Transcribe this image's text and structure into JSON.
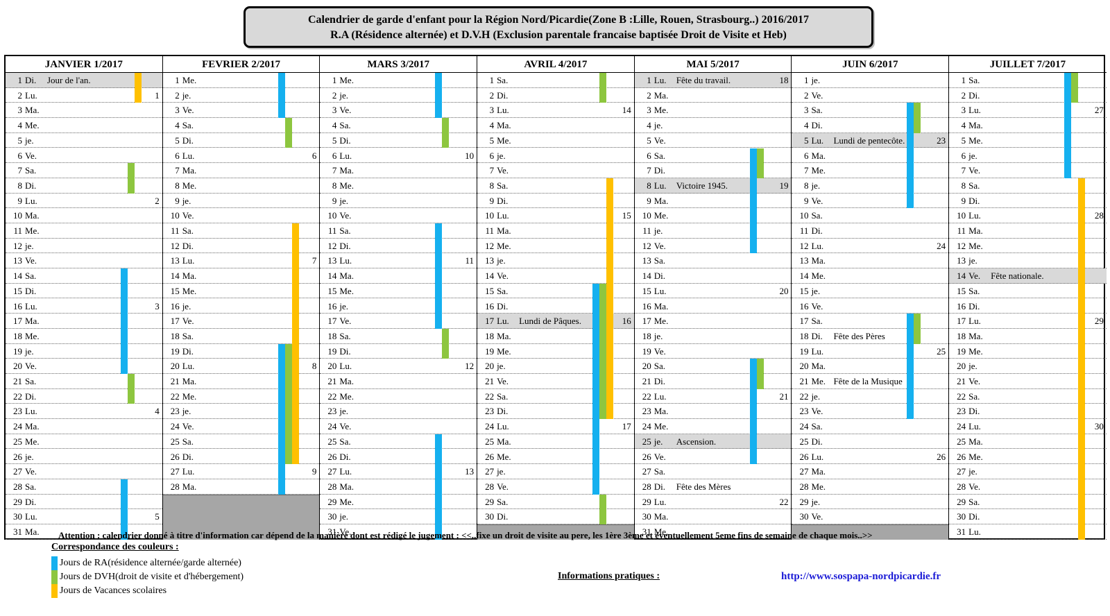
{
  "title": {
    "line1": "Calendrier de garde d'enfant pour la Région Nord/Picardie(Zone B :Lille, Rouen, Strasbourg..) 2016/2017",
    "line2": "R.A (Résidence alternée) et D.V.H (Exclusion parentale francaise baptisée Droit de Visite et Heb)"
  },
  "colors": {
    "ra": "#15b0ef",
    "dvh": "#8dc63f",
    "vacances": "#ffc000",
    "holiday": "#d9d9d9",
    "filler": "#a6a6a6"
  },
  "months": [
    {
      "name": "JANVIER 1/2017",
      "days": 31,
      "start_dow": 6,
      "holidays": [
        {
          "day": 1,
          "name": "Jour de l'an."
        }
      ],
      "weeks": [
        {
          "day": 2,
          "n": "1"
        },
        {
          "day": 9,
          "n": "2"
        },
        {
          "day": 16,
          "n": "3"
        },
        {
          "day": 23,
          "n": "4"
        },
        {
          "day": 30,
          "n": "5"
        }
      ],
      "ra": [
        [
          14,
          20
        ],
        [
          28,
          31
        ]
      ],
      "dvh": [
        [
          7,
          8
        ],
        [
          21,
          22
        ]
      ],
      "vac": [
        [
          1,
          2
        ]
      ]
    },
    {
      "name": "FEVRIER 2/2017",
      "days": 28,
      "start_dow": 2,
      "holidays": [],
      "weeks": [
        {
          "day": 6,
          "n": "6"
        },
        {
          "day": 13,
          "n": "7"
        },
        {
          "day": 20,
          "n": "8"
        },
        {
          "day": 27,
          "n": "9"
        }
      ],
      "ra": [
        [
          1,
          3
        ],
        [
          19,
          28
        ]
      ],
      "dvh": [
        [
          4,
          5
        ],
        [
          19,
          26
        ]
      ],
      "vac": [
        [
          11,
          26
        ]
      ]
    },
    {
      "name": "MARS 3/2017",
      "days": 31,
      "start_dow": 2,
      "holidays": [],
      "weeks": [
        {
          "day": 6,
          "n": "10"
        },
        {
          "day": 13,
          "n": "11"
        },
        {
          "day": 20,
          "n": "12"
        },
        {
          "day": 27,
          "n": "13"
        }
      ],
      "ra": [
        [
          1,
          3
        ],
        [
          11,
          17
        ],
        [
          25,
          31
        ]
      ],
      "dvh": [
        [
          4,
          5
        ],
        [
          18,
          19
        ]
      ],
      "vac": []
    },
    {
      "name": "AVRIL 4/2017",
      "days": 30,
      "start_dow": 5,
      "holidays": [
        {
          "day": 17,
          "name": "Lundi de Pâques."
        }
      ],
      "weeks": [
        {
          "day": 3,
          "n": "14"
        },
        {
          "day": 10,
          "n": "15"
        },
        {
          "day": 17,
          "n": "16"
        },
        {
          "day": 24,
          "n": "17"
        }
      ],
      "ra": [
        [
          15,
          28
        ]
      ],
      "dvh": [
        [
          1,
          2
        ],
        [
          15,
          23
        ],
        [
          29,
          30
        ]
      ],
      "vac": [
        [
          8,
          23
        ]
      ]
    },
    {
      "name": "MAI 5/2017",
      "days": 31,
      "start_dow": 0,
      "holidays": [
        {
          "day": 1,
          "name": "Fête du travail."
        },
        {
          "day": 8,
          "name": "Victoire 1945."
        },
        {
          "day": 25,
          "name": "Ascension."
        },
        {
          "day": 28,
          "name": "Fête des Mères",
          "plain": true
        }
      ],
      "weeks": [
        {
          "day": 1,
          "n": "18"
        },
        {
          "day": 8,
          "n": "19"
        },
        {
          "day": 15,
          "n": "20"
        },
        {
          "day": 22,
          "n": "21"
        },
        {
          "day": 29,
          "n": "22"
        }
      ],
      "ra": [
        [
          6,
          12
        ],
        [
          20,
          26
        ]
      ],
      "dvh": [
        [
          6,
          7
        ],
        [
          20,
          21
        ]
      ],
      "vac": []
    },
    {
      "name": "JUIN 6/2017",
      "days": 30,
      "start_dow": 3,
      "holidays": [
        {
          "day": 5,
          "name": "Lundi de pentecôte."
        },
        {
          "day": 18,
          "name": "Fête des Pères",
          "plain": true
        },
        {
          "day": 21,
          "name": "Fête de la Musique",
          "plain": true
        }
      ],
      "weeks": [
        {
          "day": 5,
          "n": "23"
        },
        {
          "day": 12,
          "n": "24"
        },
        {
          "day": 19,
          "n": "25"
        },
        {
          "day": 26,
          "n": "26"
        }
      ],
      "ra": [
        [
          3,
          9
        ],
        [
          17,
          23
        ]
      ],
      "dvh": [
        [
          3,
          4
        ],
        [
          17,
          18
        ]
      ],
      "vac": []
    },
    {
      "name": "JUILLET 7/2017",
      "days": 31,
      "start_dow": 5,
      "holidays": [
        {
          "day": 14,
          "name": "Fête nationale."
        }
      ],
      "weeks": [
        {
          "day": 3,
          "n": "27"
        },
        {
          "day": 10,
          "n": "28"
        },
        {
          "day": 17,
          "n": "29"
        },
        {
          "day": 24,
          "n": "30"
        }
      ],
      "ra": [
        [
          1,
          7
        ]
      ],
      "dvh": [
        [
          1,
          2
        ]
      ],
      "vac": [
        [
          8,
          31
        ]
      ]
    }
  ],
  "day_abbr": [
    "Lu.",
    "Ma.",
    "Me.",
    "je.",
    "Ve.",
    "Sa.",
    "Di."
  ],
  "attention": "Attention : calendrier donné à titre d'information car dépend de la manière dont est rédigé le jugement : <<..fixe un droit de visite au pere, les 1ère 3ème et éventuellement 5eme fins de semaine de chaque mois..>>",
  "legend": {
    "title": "Correspondance des couleurs :",
    "ra": "Jours de RA(résidence alternée/garde alternée)",
    "dvh": "Jours de DVH(droit de visite et d'hébergement)",
    "vac": "Jours de Vacances scolaires"
  },
  "info_label": "Informations pratiques :",
  "site": "http://www.sospapa-nordpicardie.fr"
}
